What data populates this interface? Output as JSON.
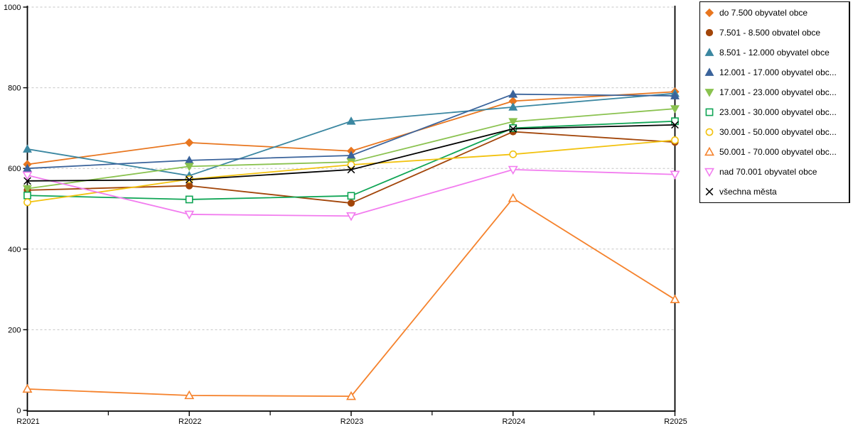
{
  "chart_data": {
    "type": "line",
    "title": "",
    "xlabel": "",
    "ylabel": "",
    "categories": [
      "R2021",
      "R2022",
      "R2023",
      "R2024",
      "R2025"
    ],
    "ylim": [
      0,
      1000
    ],
    "yticks": [
      0,
      200,
      400,
      600,
      800,
      1000
    ],
    "grid": "horizontal dashed gridlines at each y tick",
    "legend_position": "right",
    "axis_color": "#000000",
    "gridline_color": "#C6C6C6",
    "series": [
      {
        "name": "do 7.500 obyvatel obce",
        "marker": "diamond",
        "fill": true,
        "color": "#E8761F",
        "values": [
          610,
          664,
          643,
          767,
          790
        ]
      },
      {
        "name": "7.501 - 8.500 obvatel obce",
        "marker": "circle",
        "fill": true,
        "color": "#A24509",
        "values": [
          546,
          557,
          514,
          691,
          665
        ]
      },
      {
        "name": "8.501 - 12.000 obyvatel obce",
        "marker": "triangle-up",
        "fill": true,
        "color": "#3B87A1",
        "values": [
          648,
          582,
          717,
          752,
          786
        ]
      },
      {
        "name": "12.001 - 17.000 obyvatel obc...",
        "marker": "triangle-up",
        "fill": true,
        "color": "#3A639B",
        "values": [
          600,
          620,
          632,
          784,
          780
        ]
      },
      {
        "name": "17.001 - 23.000 obyvatel obc...",
        "marker": "triangle-down",
        "fill": true,
        "color": "#8AC24F",
        "values": [
          550,
          605,
          616,
          716,
          748
        ]
      },
      {
        "name": "23.001 - 30.000 obyvatel obc...",
        "marker": "square",
        "fill": false,
        "color": "#0FA555",
        "values": [
          533,
          523,
          532,
          700,
          717
        ]
      },
      {
        "name": "30.001 - 50.000 obyvatel obc...",
        "marker": "circle",
        "fill": false,
        "color": "#F2C20F",
        "values": [
          516,
          573,
          609,
          635,
          670
        ]
      },
      {
        "name": "50.001 - 70.000 obyvatel obc...",
        "marker": "triangle-up",
        "fill": false,
        "color": "#F5822C",
        "values": [
          53,
          37,
          35,
          526,
          275
        ]
      },
      {
        "name": "nad 70.001 obyvatel obce",
        "marker": "triangle-down",
        "fill": false,
        "color": "#F27CEF",
        "values": [
          583,
          486,
          482,
          597,
          585
        ]
      },
      {
        "name": "všechna města",
        "marker": "x",
        "fill": false,
        "color": "#000000",
        "values": [
          569,
          572,
          597,
          698,
          708
        ]
      }
    ]
  }
}
